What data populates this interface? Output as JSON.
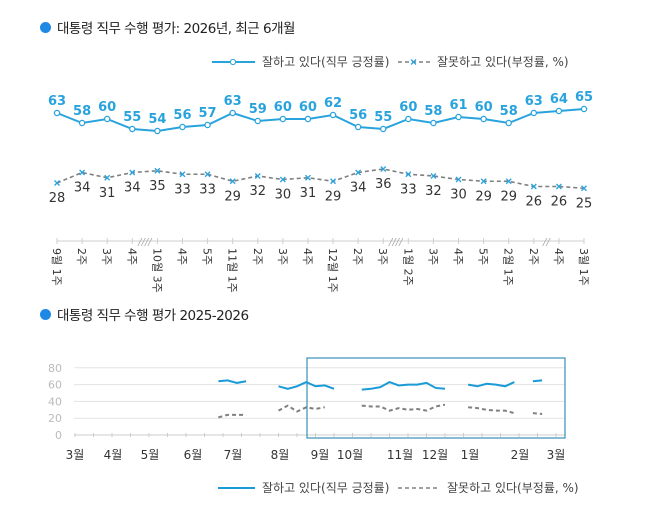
{
  "chart_data": [
    {
      "type": "line",
      "title": "대통령 직무 수행 평가: 2026년, 최근 6개월",
      "categories": [
        "9월 1주",
        "2주",
        "3주",
        "4주",
        "10월 3주",
        "4주",
        "5주",
        "11월 1주",
        "2주",
        "3주",
        "4주",
        "12월 1주",
        "2주",
        "3주",
        "1월 2주",
        "3주",
        "4주",
        "5주",
        "2월 1주",
        "2주",
        "4주",
        "3월 1주"
      ],
      "axis_breaks_after": [
        "4주",
        "12월 3주",
        "2월 2주"
      ],
      "series": [
        {
          "name": "잘하고 있다(직무 긍정률)",
          "color": "#29a3dd",
          "marker": "circle",
          "style": "solid",
          "values": [
            63,
            58,
            60,
            55,
            54,
            56,
            57,
            63,
            59,
            60,
            60,
            62,
            56,
            55,
            60,
            58,
            61,
            60,
            58,
            63,
            64,
            65
          ]
        },
        {
          "name": "잘못하고 있다(부정률, %)",
          "color": "#7f7f7f",
          "marker": "x",
          "style": "dashed",
          "values": [
            28,
            34,
            31,
            34,
            35,
            33,
            33,
            29,
            32,
            30,
            31,
            29,
            34,
            36,
            33,
            32,
            30,
            29,
            29,
            26,
            26,
            25
          ]
        }
      ],
      "legend": "top-right",
      "grid": false,
      "data_labels": true
    },
    {
      "type": "line",
      "title": "대통령 직무 수행 평가 2025-2026",
      "x_ticks": [
        "3월",
        "4월",
        "5월",
        "6월",
        "7월",
        "8월",
        "9월",
        "10월",
        "11월",
        "12월",
        "1월",
        "2월",
        "3월"
      ],
      "y_ticks": [
        0,
        20,
        40,
        60,
        80
      ],
      "ylim": [
        0,
        80
      ],
      "grid": true,
      "legend": "bottom",
      "highlight_range": [
        "9월",
        "3월"
      ],
      "series": [
        {
          "name": "잘하고 있다(직무 긍정률)",
          "color": "#1a9bd7",
          "style": "solid",
          "segments": [
            [
              64,
              65,
              62,
              64
            ],
            [
              58,
              55,
              58,
              63,
              58,
              59,
              55
            ],
            [
              54,
              55,
              57,
              63,
              59,
              60,
              60,
              62,
              56,
              55
            ],
            [
              60,
              58,
              61,
              60,
              58,
              63
            ],
            [
              64,
              65
            ]
          ]
        },
        {
          "name": "잘못하고 있다(부정률, %)",
          "color": "#808080",
          "style": "dashed",
          "segments": [
            [
              21,
              24,
              24,
              24
            ],
            [
              29,
              35,
              28,
              33,
              31,
              33
            ],
            [
              35,
              34,
              34,
              29,
              32,
              30,
              31,
              29,
              34,
              36
            ],
            [
              33,
              32,
              30,
              29,
              29,
              26
            ],
            [
              26,
              25
            ]
          ]
        }
      ]
    }
  ]
}
